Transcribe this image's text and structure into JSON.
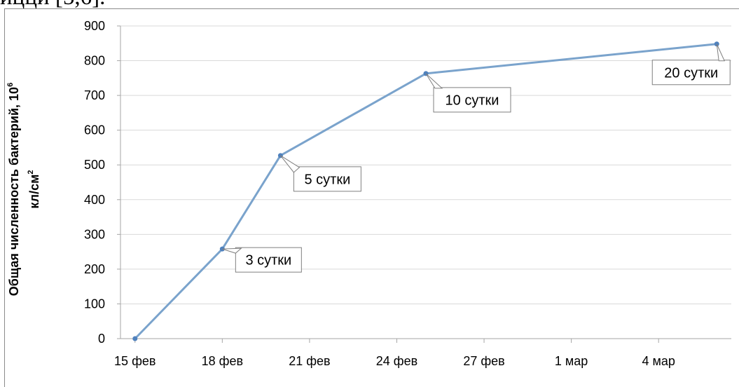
{
  "page": {
    "caption_fragment": "ицци [5,6]."
  },
  "chart_data": {
    "type": "line",
    "title": "",
    "ylabel": {
      "line1_text": "Общая численность бактерий, 10",
      "line1_sup": "6",
      "line2_text": "кл/см",
      "line2_sup": "2"
    },
    "xlabel": "",
    "x_ticks": [
      "15 фев",
      "18 фев",
      "21 фев",
      "24 фев",
      "27 фев",
      "1 мар",
      "4 мар"
    ],
    "x_tick_days": [
      0,
      3,
      6,
      9,
      12,
      15,
      18
    ],
    "x_range_days": [
      -0.5,
      20.5
    ],
    "ylim": [
      0,
      900
    ],
    "y_ticks": [
      0,
      100,
      200,
      300,
      400,
      500,
      600,
      700,
      800,
      900
    ],
    "grid": true,
    "series": [
      {
        "color": "#7aa3cc",
        "x_days": [
          0,
          3,
          5,
          10,
          20
        ],
        "values": [
          0,
          258,
          527,
          763,
          848
        ]
      }
    ],
    "annotations": [
      {
        "text": "3 сутки",
        "point_index": 1
      },
      {
        "text": "5 сутки",
        "point_index": 2
      },
      {
        "text": "10 сутки",
        "point_index": 3
      },
      {
        "text": "20 сутки",
        "point_index": 4
      }
    ]
  }
}
